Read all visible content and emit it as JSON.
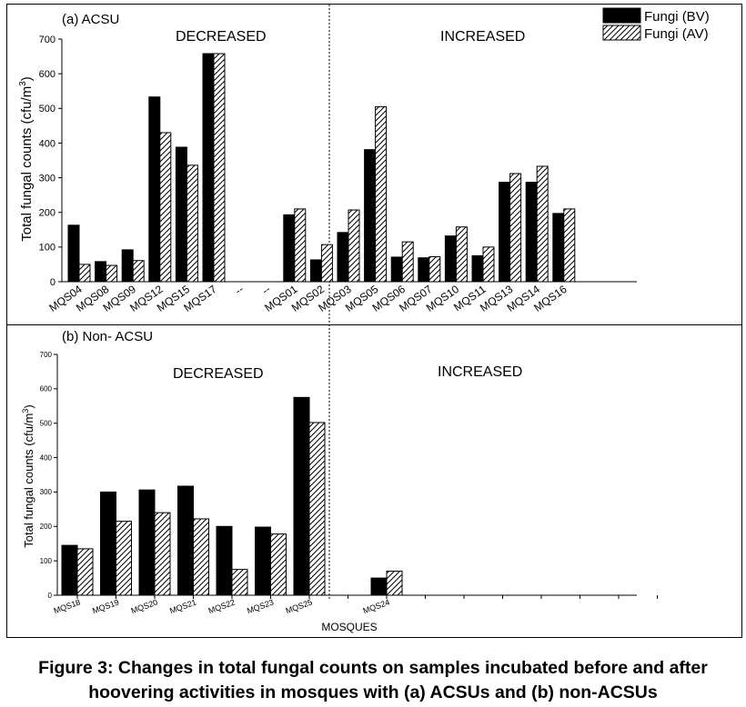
{
  "caption": {
    "line1": "Figure 3: Changes in total fungal counts on samples incubated before and after",
    "line2": "hoovering activities in mosques with  (a) ACSUs and (b) non-ACSUs"
  },
  "legend": {
    "placement": "top-right",
    "items": [
      {
        "label": "Fungi (BV)",
        "fill": "solid-black"
      },
      {
        "label": "Fungi (AV)",
        "fill": "diagonal-hatch"
      }
    ]
  },
  "chart_data": [
    {
      "type": "bar",
      "panel_label": "(a) ACSU",
      "ylabel": "Total fungal counts (cfu/m3)",
      "ylabel_parts": {
        "main": "Total fungal counts (cfu/m",
        "sup": "3",
        "end": ")"
      },
      "ylim": [
        0,
        700
      ],
      "yticks": [
        0,
        100,
        200,
        300,
        400,
        500,
        600,
        700
      ],
      "group_labels": [
        "DECREASED",
        "INCREASED"
      ],
      "categories": [
        "MQS04",
        "MQS08",
        "MQS09",
        "MQS12",
        "MQS15",
        "MQS17",
        "--",
        "--",
        "MQS01",
        "MQS02",
        "MQS03",
        "MQS05",
        "MQS06",
        "MQS07",
        "MQS10",
        "MQS11",
        "MQS13",
        "MQS14",
        "MQS16"
      ],
      "series": [
        {
          "name": "Fungi (BV)",
          "values": [
            163,
            58,
            92,
            533,
            388,
            658,
            null,
            null,
            193,
            63,
            142,
            381,
            71,
            69,
            132,
            75,
            287,
            287,
            197
          ]
        },
        {
          "name": "Fungi (AV)",
          "values": [
            50,
            47,
            61,
            430,
            336,
            658,
            null,
            null,
            210,
            107,
            207,
            505,
            115,
            72,
            158,
            100,
            312,
            333,
            210
          ]
        }
      ],
      "grid": false
    },
    {
      "type": "bar",
      "panel_label": "(b) Non- ACSU",
      "ylabel": "Total fungal counts (cfu/m3)",
      "ylabel_parts": {
        "main": "Total fungal counts (cfu/m",
        "sup": "3",
        "end": ")"
      },
      "xlabel": "MOSQUES",
      "ylim": [
        0,
        700
      ],
      "yticks": [
        0,
        100,
        200,
        300,
        400,
        500,
        600,
        700
      ],
      "group_labels": [
        "DECREASED",
        "INCREASED"
      ],
      "categories": [
        "MQS18",
        "MQS19",
        "MQS20",
        "MQS21",
        "MQS22",
        "MQS23",
        "MQS25",
        "",
        "MQS24",
        "",
        "",
        "",
        "",
        "",
        "",
        ""
      ],
      "series": [
        {
          "name": "Fungi (BV)",
          "values": [
            145,
            300,
            306,
            317,
            200,
            198,
            575,
            null,
            50,
            null,
            null,
            null,
            null,
            null,
            null,
            null
          ]
        },
        {
          "name": "Fungi (AV)",
          "values": [
            135,
            215,
            240,
            222,
            75,
            178,
            502,
            null,
            70,
            null,
            null,
            null,
            null,
            null,
            null,
            null
          ]
        }
      ],
      "grid": false
    }
  ]
}
